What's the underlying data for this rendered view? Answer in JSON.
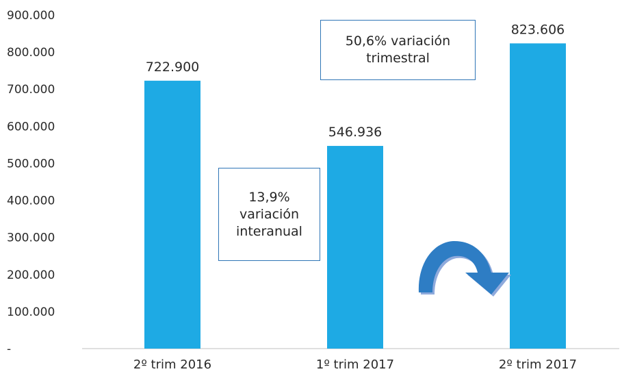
{
  "chart_data": {
    "type": "bar",
    "categories": [
      "2º trim 2016",
      "1º trim 2017",
      "2º trim 2017"
    ],
    "values": [
      722900,
      546936,
      823606
    ],
    "data_labels": [
      "722.900",
      "546.936",
      "823.606"
    ],
    "ylim": [
      0,
      900000
    ],
    "yticks": [
      0,
      100000,
      200000,
      300000,
      400000,
      500000,
      600000,
      700000,
      800000,
      900000
    ],
    "ytick_labels": [
      "-",
      "100.000",
      "200.000",
      "300.000",
      "400.000",
      "500.000",
      "600.000",
      "700.000",
      "800.000",
      "900.000"
    ],
    "grid": false,
    "colors": {
      "bar": "#1eaae4",
      "axis": "#bfbfbf",
      "box_border": "#2e75b6",
      "arrow": "#2e7dc4"
    },
    "annotations": [
      {
        "lines": [
          "13,9%",
          "variación",
          "interanual"
        ]
      },
      {
        "lines": [
          "50,6% variación",
          "trimestral"
        ]
      }
    ]
  }
}
